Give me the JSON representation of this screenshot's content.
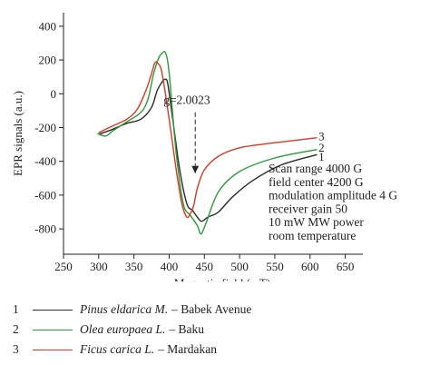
{
  "chart_data": {
    "type": "line",
    "xlabel": "Magnetic field (mT)",
    "ylabel": "EPR signals (a.u.)",
    "xlim": [
      250,
      675
    ],
    "ylim": [
      -950,
      480
    ],
    "xticks": [
      250,
      300,
      350,
      400,
      450,
      500,
      550,
      600,
      650
    ],
    "yticks": [
      -800,
      -600,
      -400,
      -200,
      0,
      200,
      400
    ],
    "grid": false,
    "series": [
      {
        "id": "1",
        "color": "#2a2a2a",
        "x": [
          300,
          320,
          340,
          360,
          375,
          383,
          390,
          394,
          398,
          405,
          415,
          425,
          433,
          440,
          446,
          455,
          470,
          490,
          520,
          560,
          610
        ],
        "y": [
          -240,
          -210,
          -175,
          -150,
          -80,
          20,
          70,
          85,
          60,
          -150,
          -450,
          -650,
          -690,
          -730,
          -755,
          -730,
          -700,
          -610,
          -510,
          -420,
          -360
        ]
      },
      {
        "id": "2",
        "color": "#2e9a3a",
        "x": [
          298,
          310,
          320,
          340,
          360,
          370,
          378,
          385,
          390,
          395,
          400,
          410,
          420,
          430,
          440,
          445,
          452,
          470,
          500,
          550,
          610
        ],
        "y": [
          -235,
          -250,
          -220,
          -165,
          -110,
          -30,
          120,
          210,
          240,
          240,
          120,
          -350,
          -650,
          -720,
          -780,
          -830,
          -770,
          -580,
          -460,
          -380,
          -330
        ]
      },
      {
        "id": "3",
        "color": "#d83a22",
        "x": [
          300,
          320,
          340,
          355,
          368,
          375,
          380,
          385,
          390,
          400,
          410,
          418,
          425,
          430,
          435,
          440,
          450,
          470,
          500,
          550,
          610
        ],
        "y": [
          -230,
          -190,
          -150,
          -90,
          30,
          120,
          185,
          175,
          120,
          -150,
          -450,
          -650,
          -730,
          -710,
          -660,
          -560,
          -450,
          -370,
          -320,
          -290,
          -260
        ]
      }
    ],
    "annotations": {
      "g_label": "g=2.0023",
      "g_arrow_x": 437,
      "curve_numbers": [
        "3",
        "2",
        "1"
      ],
      "conditions": [
        "Scan range 4000 G",
        "field center 4200 G",
        "modulation amplitude 4 G",
        "receiver gain 50",
        "10 mW MW power",
        "room temperature"
      ]
    }
  },
  "legend": [
    {
      "num": "1",
      "color": "#2a2a2a",
      "species": "Pinus eldarica M.",
      "place": "– Babek Avenue"
    },
    {
      "num": "2",
      "color": "#2e9a3a",
      "species": "Olea europaea L.",
      "place": "– Baku"
    },
    {
      "num": "3",
      "color": "#d83a22",
      "species": "Ficus carica L.",
      "place": "– Mardakan"
    }
  ]
}
